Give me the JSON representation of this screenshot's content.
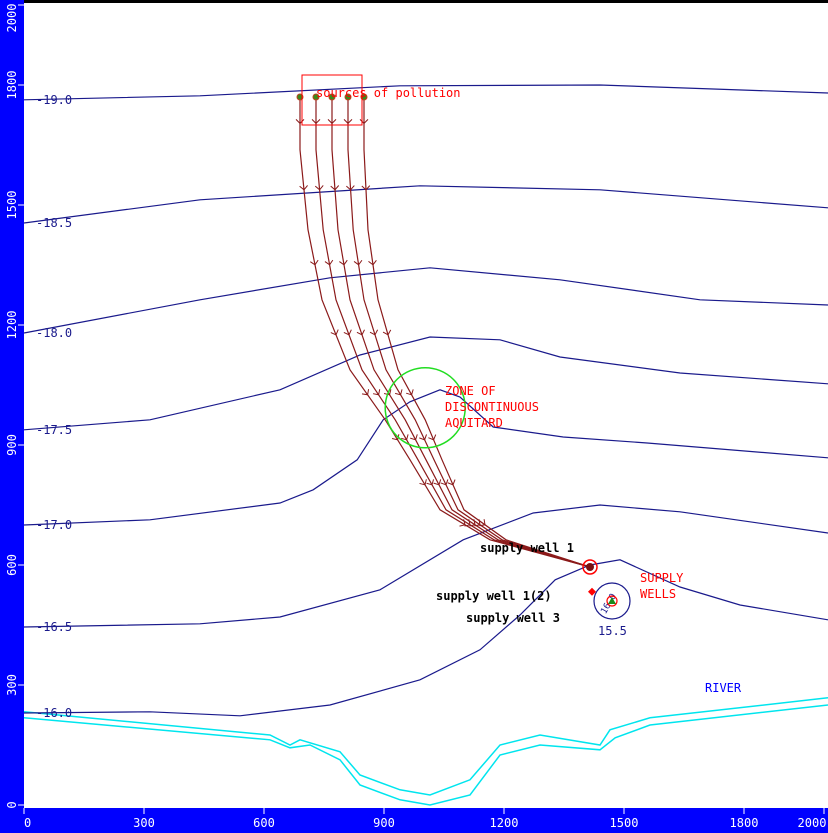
{
  "chart_data": {
    "type": "contour",
    "title": "",
    "xlabel": "",
    "ylabel": "",
    "xlim": [
      0,
      2000
    ],
    "ylim": [
      0,
      2000
    ],
    "x_ticks": [
      "0",
      "300",
      "600",
      "900",
      "1200",
      "1500",
      "1800",
      "2000"
    ],
    "x_tick_values": [
      0,
      300,
      600,
      900,
      1200,
      1500,
      1800,
      2000
    ],
    "y_ticks": [
      "0",
      "300",
      "600",
      "900",
      "1200",
      "1500",
      "1800",
      "2000"
    ],
    "y_tick_values": [
      0,
      300,
      600,
      900,
      1200,
      1500,
      1800,
      2000
    ],
    "colors": {
      "frame": "#0000ff",
      "contour": "#1a1a8c",
      "pathline": "#8b1a1a",
      "river": "#00e5ee",
      "annotation": "#ff0000",
      "zone": "#22dd22",
      "well_label": "#000000",
      "river_label": "#0000ff"
    },
    "contours": [
      {
        "label": "-19.0",
        "points": [
          [
            0,
            1763
          ],
          [
            440,
            1773
          ],
          [
            940,
            1798
          ],
          [
            1440,
            1800
          ],
          [
            2010,
            1780
          ]
        ]
      },
      {
        "label": "-18.5",
        "points": [
          [
            0,
            1455
          ],
          [
            440,
            1513
          ],
          [
            990,
            1548
          ],
          [
            1440,
            1538
          ],
          [
            2010,
            1493
          ]
        ]
      },
      {
        "label": "-18.0",
        "points": [
          [
            0,
            1180
          ],
          [
            440,
            1263
          ],
          [
            765,
            1318
          ],
          [
            1015,
            1343
          ],
          [
            1340,
            1313
          ],
          [
            1690,
            1263
          ],
          [
            2010,
            1250
          ]
        ]
      },
      {
        "label": "-17.5",
        "points": [
          [
            0,
            938
          ],
          [
            315,
            963
          ],
          [
            640,
            1038
          ],
          [
            840,
            1125
          ],
          [
            1015,
            1170
          ],
          [
            1190,
            1163
          ],
          [
            1340,
            1120
          ],
          [
            1640,
            1080
          ],
          [
            2010,
            1053
          ]
        ]
      },
      {
        "label": "-17.0",
        "points": [
          [
            0,
            700
          ],
          [
            315,
            713
          ],
          [
            640,
            755
          ],
          [
            723,
            788
          ],
          [
            833,
            863
          ],
          [
            898,
            963
          ],
          [
            965,
            1008
          ],
          [
            1040,
            1038
          ],
          [
            1090,
            1020
          ],
          [
            1173,
            945
          ],
          [
            1348,
            920
          ],
          [
            1558,
            905
          ],
          [
            2010,
            868
          ]
        ]
      },
      {
        "label": "-16.5",
        "points": [
          [
            0,
            445
          ],
          [
            440,
            453
          ],
          [
            640,
            470
          ],
          [
            890,
            538
          ],
          [
            1098,
            663
          ],
          [
            1273,
            730
          ],
          [
            1440,
            750
          ],
          [
            1640,
            733
          ],
          [
            2010,
            680
          ]
        ]
      },
      {
        "label": "-16.0",
        "points": [
          [
            0,
            230
          ],
          [
            315,
            233
          ],
          [
            540,
            223
          ],
          [
            765,
            250
          ],
          [
            990,
            313
          ],
          [
            1140,
            388
          ],
          [
            1240,
            475
          ],
          [
            1328,
            563
          ],
          [
            1415,
            600
          ],
          [
            1490,
            613
          ],
          [
            1640,
            545
          ],
          [
            1790,
            500
          ],
          [
            2010,
            463
          ]
        ]
      }
    ],
    "well_contour": {
      "label": "15.5",
      "center": [
        1470,
        510
      ],
      "radius": 45
    },
    "well_contour_inner_label": "16.0",
    "river": [
      [
        [
          0,
          233
        ],
        [
          615,
          175
        ],
        [
          665,
          150
        ],
        [
          690,
          163
        ],
        [
          790,
          133
        ],
        [
          840,
          75
        ],
        [
          940,
          38
        ],
        [
          1015,
          25
        ],
        [
          1115,
          63
        ],
        [
          1190,
          150
        ],
        [
          1290,
          175
        ],
        [
          1440,
          150
        ],
        [
          1465,
          188
        ],
        [
          1565,
          218
        ],
        [
          2010,
          268
        ]
      ],
      [
        [
          0,
          218
        ],
        [
          615,
          163
        ],
        [
          665,
          143
        ],
        [
          715,
          150
        ],
        [
          790,
          113
        ],
        [
          840,
          50
        ],
        [
          940,
          13
        ],
        [
          1015,
          0
        ],
        [
          1115,
          25
        ],
        [
          1190,
          125
        ],
        [
          1290,
          150
        ],
        [
          1440,
          138
        ],
        [
          1478,
          168
        ],
        [
          1565,
          200
        ],
        [
          2010,
          250
        ]
      ]
    ],
    "pathlines": [
      [
        [
          690,
          1770
        ],
        [
          690,
          1638
        ],
        [
          710,
          1438
        ],
        [
          745,
          1263
        ],
        [
          815,
          1088
        ],
        [
          903,
          963
        ],
        [
          965,
          863
        ],
        [
          1040,
          738
        ],
        [
          1165,
          663
        ],
        [
          1415,
          595
        ]
      ],
      [
        [
          730,
          1770
        ],
        [
          730,
          1638
        ],
        [
          748,
          1438
        ],
        [
          780,
          1263
        ],
        [
          845,
          1088
        ],
        [
          928,
          963
        ],
        [
          985,
          863
        ],
        [
          1055,
          738
        ],
        [
          1175,
          663
        ],
        [
          1415,
          595
        ]
      ],
      [
        [
          770,
          1770
        ],
        [
          770,
          1638
        ],
        [
          785,
          1438
        ],
        [
          815,
          1263
        ],
        [
          875,
          1088
        ],
        [
          953,
          963
        ],
        [
          1005,
          863
        ],
        [
          1070,
          738
        ],
        [
          1185,
          663
        ],
        [
          1415,
          595
        ]
      ],
      [
        [
          810,
          1770
        ],
        [
          810,
          1638
        ],
        [
          823,
          1438
        ],
        [
          850,
          1263
        ],
        [
          905,
          1088
        ],
        [
          978,
          963
        ],
        [
          1025,
          863
        ],
        [
          1085,
          738
        ],
        [
          1195,
          663
        ],
        [
          1415,
          595
        ]
      ],
      [
        [
          850,
          1770
        ],
        [
          850,
          1638
        ],
        [
          860,
          1438
        ],
        [
          885,
          1263
        ],
        [
          935,
          1088
        ],
        [
          1003,
          963
        ],
        [
          1045,
          863
        ],
        [
          1100,
          738
        ],
        [
          1205,
          663
        ],
        [
          1415,
          595
        ]
      ]
    ],
    "source_area": {
      "label": "sources of pollution",
      "x": [
        695,
        845
      ],
      "y": [
        1700,
        1825
      ]
    },
    "zone": {
      "label_lines": [
        "ZONE OF",
        "DISCONTINUOUS",
        "AQUITARD"
      ],
      "center": [
        1003,
        993
      ],
      "radius": 100
    },
    "wells": [
      {
        "label": "supply well 1",
        "x": 1415,
        "y": 595,
        "marker": "circle"
      },
      {
        "label": "supply well 1(2)",
        "x": 1420,
        "y": 533,
        "marker": "diamond"
      },
      {
        "label": "supply well 3",
        "x": 1470,
        "y": 510,
        "marker": "triangle"
      }
    ],
    "annotations": {
      "supply_wells": [
        "SUPPLY",
        "WELLS"
      ],
      "river": "RIVER"
    }
  }
}
